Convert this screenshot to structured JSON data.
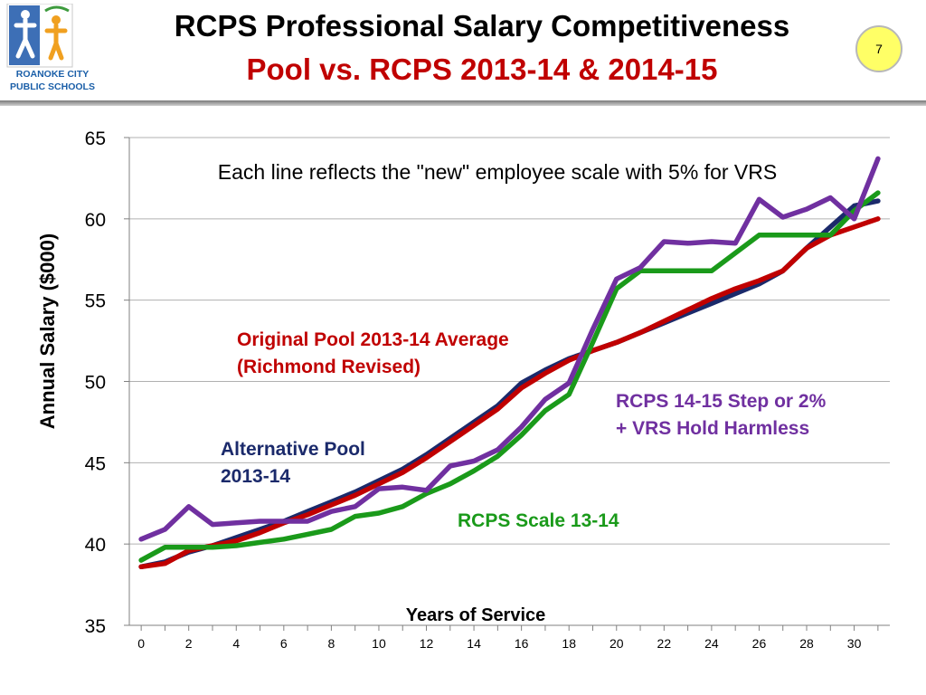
{
  "logo": {
    "line1": "ROANOKE CITY",
    "line2": "PUBLIC SCHOOLS"
  },
  "header": {
    "title": "RCPS Professional Salary Competitiveness",
    "subtitle": "Pool vs. RCPS 2013-14 & 2014-15",
    "page_number": "7"
  },
  "colors": {
    "navy": "#1b2a6b",
    "red": "#c00000",
    "green": "#1a9a1a",
    "purple": "#7030a0"
  },
  "chart_data": {
    "type": "line",
    "title": "",
    "xlabel": "Years of Service",
    "ylabel": "Annual Salary ($000)",
    "xlim": [
      -0.5,
      31.5
    ],
    "ylim": [
      35,
      65
    ],
    "x_ticks": [
      0,
      2,
      4,
      6,
      8,
      10,
      12,
      14,
      16,
      18,
      20,
      22,
      24,
      26,
      28,
      30
    ],
    "y_ticks": [
      35,
      40,
      45,
      50,
      55,
      60,
      65
    ],
    "grid": "horizontal",
    "annotation": "Each line reflects the \"new\" employee scale with 5% for VRS",
    "x": [
      0,
      1,
      2,
      3,
      4,
      5,
      6,
      7,
      8,
      9,
      10,
      11,
      12,
      13,
      14,
      15,
      16,
      17,
      18,
      19,
      20,
      21,
      22,
      23,
      24,
      25,
      26,
      27,
      28,
      29,
      30,
      31
    ],
    "series": [
      {
        "name": "Alternative Pool 2013-14",
        "label_lines": [
          "Alternative Pool",
          "2013-14"
        ],
        "color": "#1b2a6b",
        "values": [
          38.6,
          38.9,
          39.5,
          39.9,
          40.4,
          40.9,
          41.4,
          42.0,
          42.6,
          43.2,
          43.9,
          44.6,
          45.5,
          46.5,
          47.5,
          48.5,
          49.9,
          50.7,
          51.4,
          51.9,
          52.4,
          53.0,
          53.6,
          54.2,
          54.8,
          55.4,
          56.0,
          56.8,
          58.2,
          59.5,
          60.8,
          61.1
        ]
      },
      {
        "name": "Original Pool 2013-14 Average (Richmond Revised)",
        "label_lines": [
          "Original Pool 2013-14 Average",
          "(Richmond Revised)"
        ],
        "color": "#c00000",
        "values": [
          38.6,
          38.8,
          39.6,
          39.9,
          40.2,
          40.7,
          41.3,
          41.8,
          42.4,
          43.0,
          43.7,
          44.4,
          45.3,
          46.3,
          47.3,
          48.3,
          49.6,
          50.5,
          51.3,
          51.9,
          52.4,
          53.0,
          53.7,
          54.4,
          55.1,
          55.7,
          56.2,
          56.8,
          58.2,
          59.0,
          59.5,
          60.0
        ]
      },
      {
        "name": "RCPS Scale 13-14",
        "label_lines": [
          "RCPS Scale 13-14"
        ],
        "color": "#1a9a1a",
        "values": [
          39.0,
          39.8,
          39.8,
          39.8,
          39.9,
          40.1,
          40.3,
          40.6,
          40.9,
          41.7,
          41.9,
          42.3,
          43.1,
          43.7,
          44.5,
          45.4,
          46.7,
          48.2,
          49.2,
          52.4,
          55.7,
          56.8,
          56.8,
          56.8,
          56.8,
          57.9,
          59.0,
          59.0,
          59.0,
          59.0,
          60.5,
          61.6
        ]
      },
      {
        "name": "RCPS 14-15 Step or 2% + VRS Hold Harmless",
        "label_lines": [
          "RCPS 14-15 Step or 2%",
          "+ VRS Hold Harmless"
        ],
        "color": "#7030a0",
        "values": [
          40.3,
          40.9,
          42.3,
          41.2,
          41.3,
          41.4,
          41.4,
          41.4,
          42.0,
          42.3,
          43.4,
          43.5,
          43.3,
          44.8,
          45.1,
          45.8,
          47.2,
          48.9,
          49.9,
          53.2,
          56.3,
          57.0,
          58.6,
          58.5,
          58.6,
          58.5,
          61.2,
          60.1,
          60.6,
          61.3,
          60.0,
          63.7
        ]
      }
    ]
  }
}
